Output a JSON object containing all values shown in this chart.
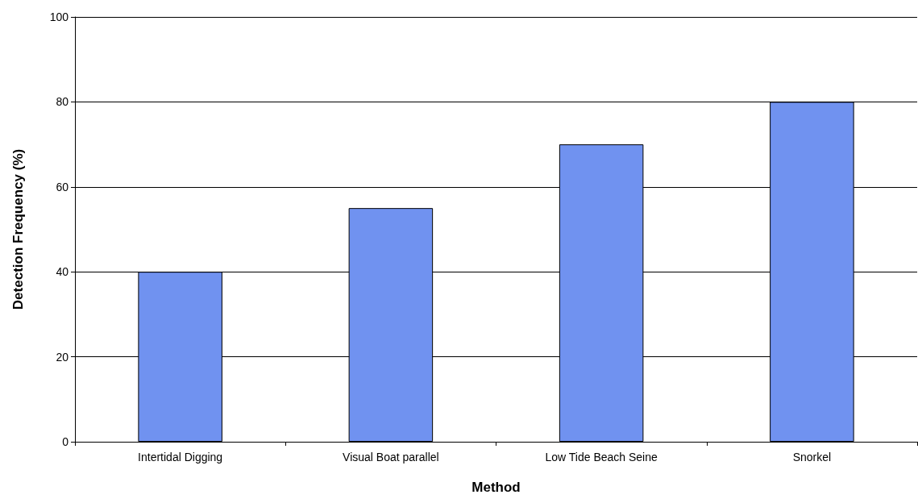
{
  "chart_data": {
    "type": "bar",
    "xlabel": "Method",
    "ylabel": "Detection Frequency (%)",
    "categories": [
      "Intertidal Digging",
      "Visual Boat parallel",
      "Low Tide Beach Seine",
      "Snorkel"
    ],
    "values": [
      40,
      55,
      70,
      80
    ],
    "color": "#7092f0",
    "ylim": [
      0,
      100
    ],
    "yticks": [
      0,
      20,
      40,
      60,
      80,
      100
    ],
    "grid": "y"
  }
}
